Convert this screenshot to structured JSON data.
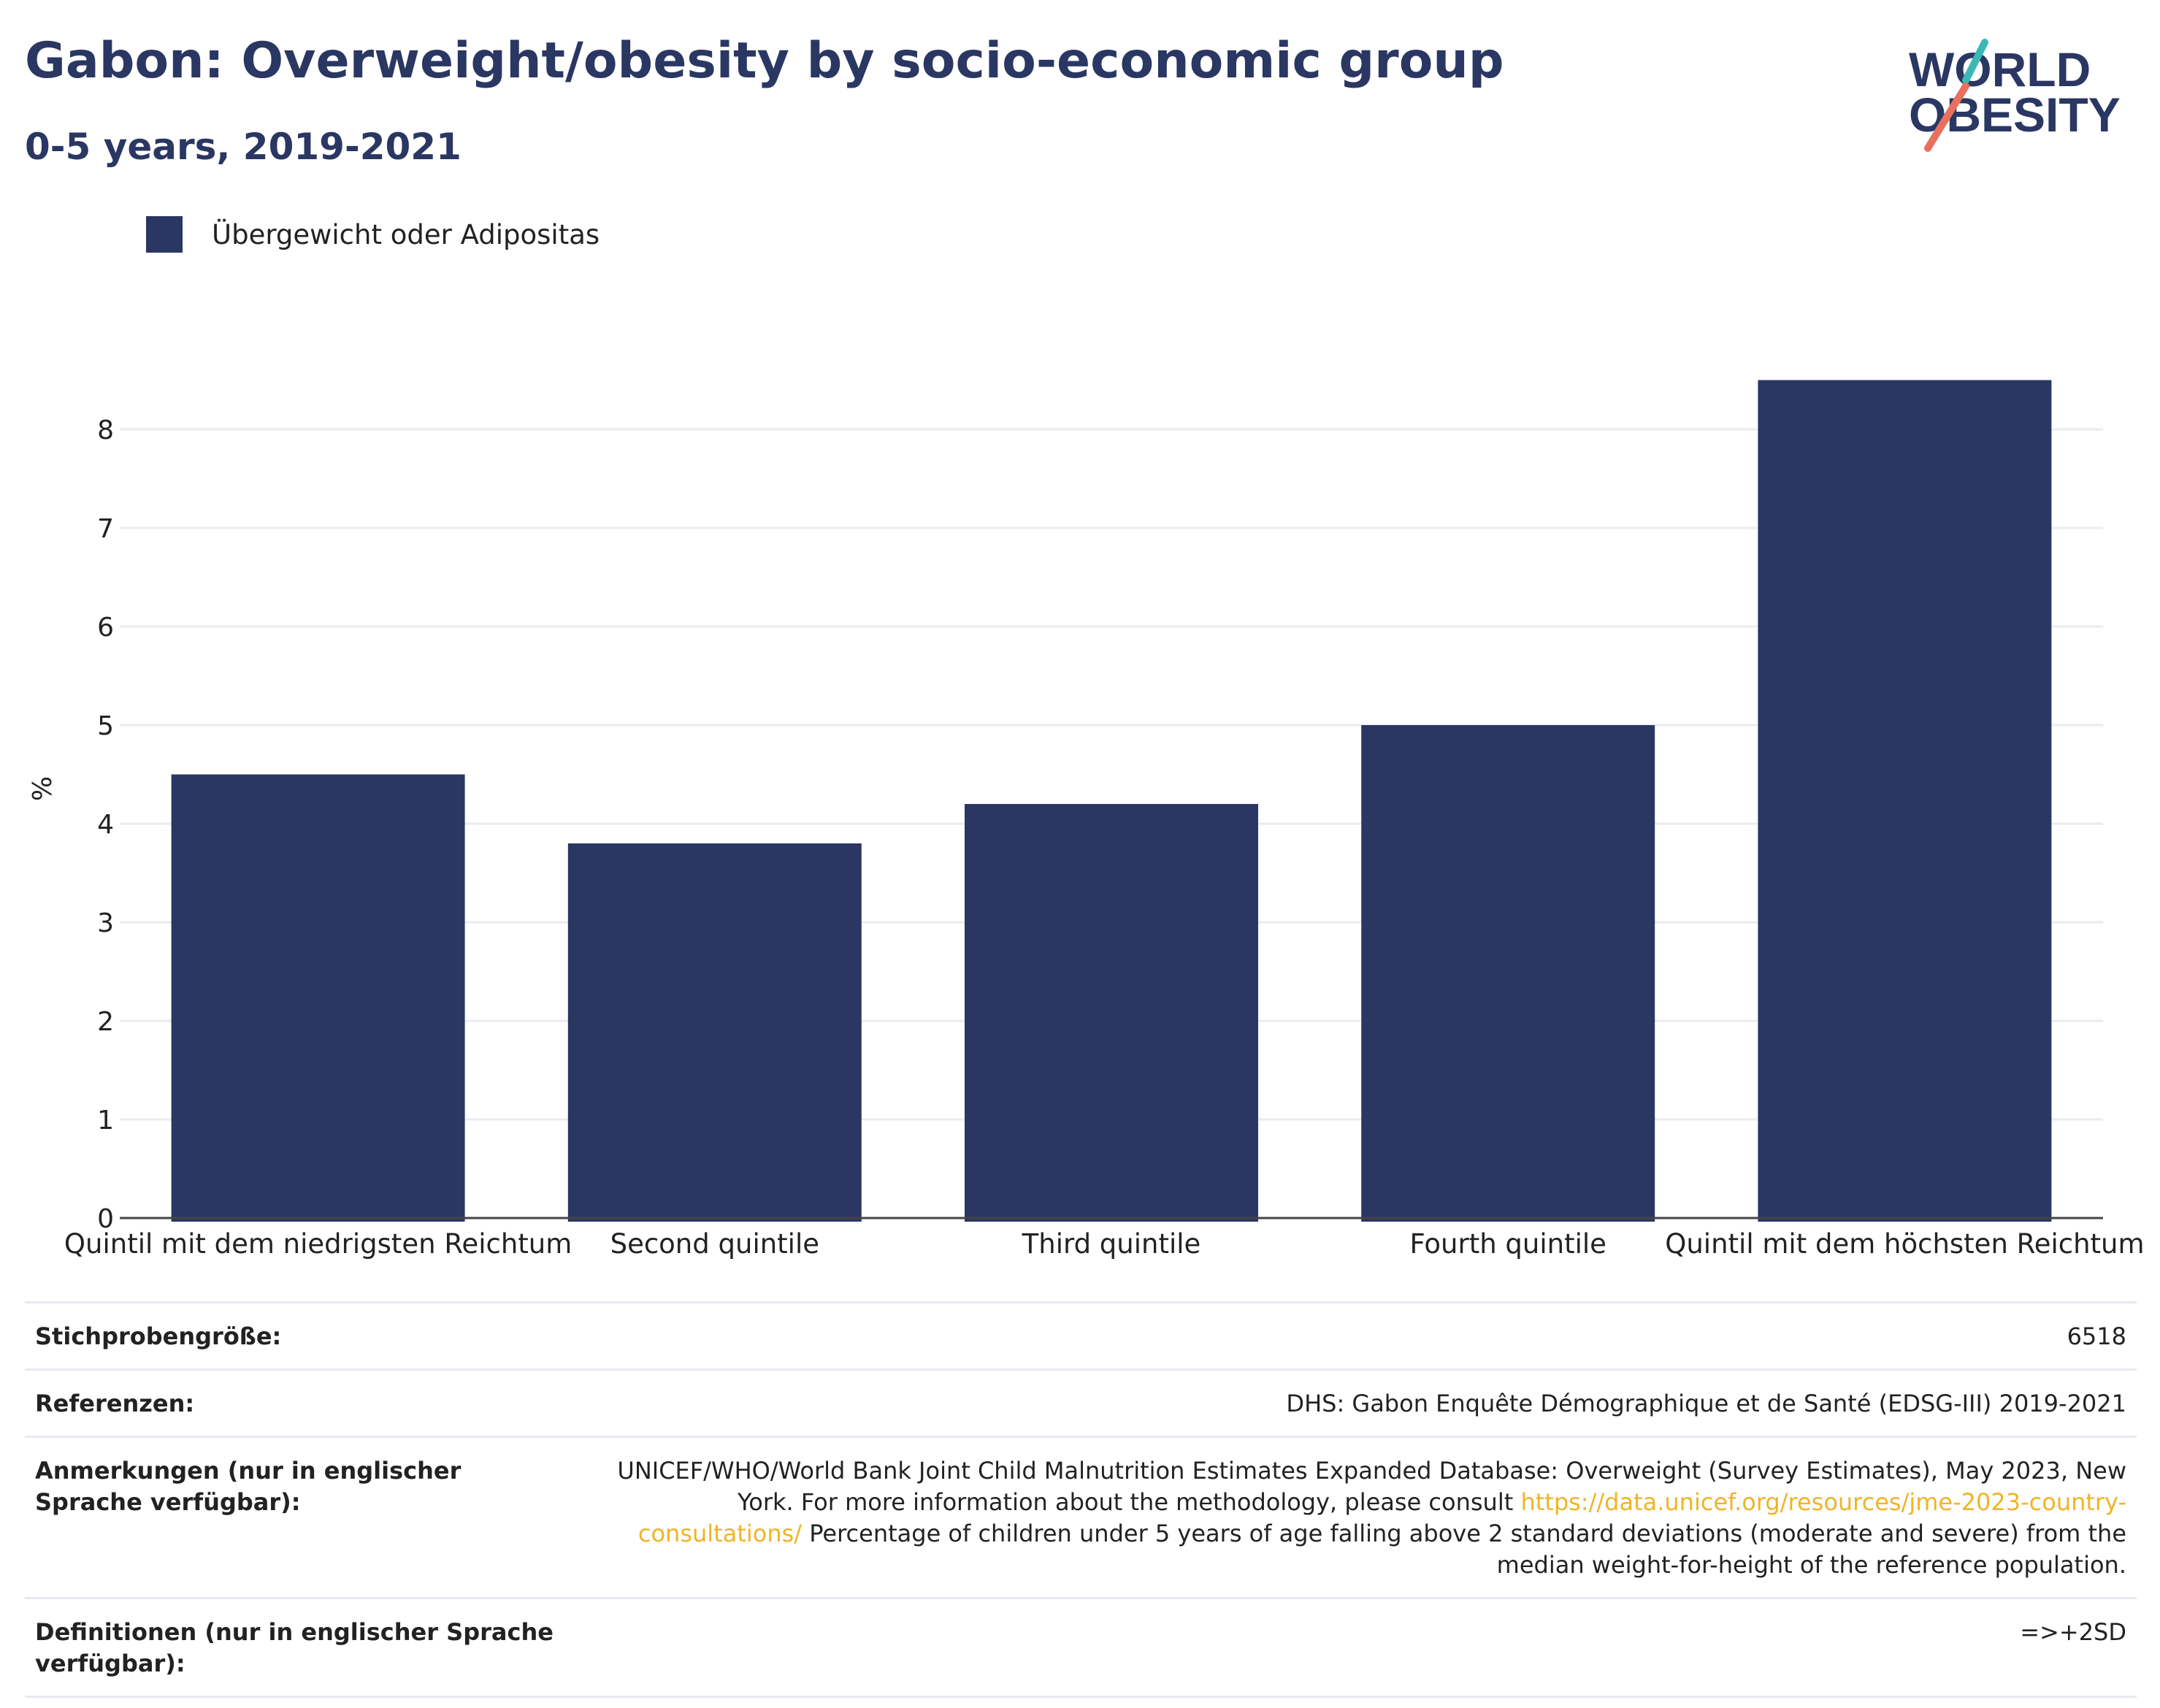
{
  "header": {
    "title": "Gabon: Overweight/obesity by socio-economic group",
    "subtitle": "0-5 years, 2019-2021"
  },
  "logo": {
    "line1": "WORLD",
    "line2": "OBESITY",
    "accent_teal": "#3bb8b6",
    "accent_coral": "#e8705f",
    "text_color": "#2a3763"
  },
  "legend": {
    "label": "Übergewicht oder Adipositas",
    "color": "#2a3763"
  },
  "chart_data": {
    "type": "bar",
    "categories": [
      "Quintil mit dem niedrigsten Reichtum",
      "Second quintile",
      "Third quintile",
      "Fourth quintile",
      "Quintil mit dem höchsten Reichtum"
    ],
    "series": [
      {
        "name": "Übergewicht oder Adipositas",
        "values": [
          4.5,
          3.8,
          4.2,
          5.0,
          8.5
        ],
        "color": "#2a3763"
      }
    ],
    "ylabel": "%",
    "ylim": [
      0,
      8.8
    ],
    "yticks": [
      0,
      1,
      2,
      3,
      4,
      5,
      6,
      7,
      8
    ],
    "grid": true
  },
  "meta": [
    {
      "key": "Stichprobengröße:",
      "value": "6518"
    },
    {
      "key": "Referenzen:",
      "value": "DHS: Gabon Enquête Démographique et de Santé (EDSG-III) 2019-2021"
    },
    {
      "key": "Anmerkungen (nur in englischer Sprache verfügbar):",
      "value_pre": "UNICEF/WHO/World Bank Joint Child Malnutrition Estimates Expanded Database: Overweight (Survey Estimates), May 2023, New York. For more information about the methodology, please consult ",
      "link": "https://data.unicef.org/resources/jme-2023-country-consultations/",
      "value_post": " Percentage of children under 5 years of age falling above 2 standard deviations (moderate and severe) from the median weight-for-height of the reference population."
    },
    {
      "key": "Definitionen (nur in englischer Sprache verfügbar):",
      "value": "=>+2SD"
    }
  ]
}
